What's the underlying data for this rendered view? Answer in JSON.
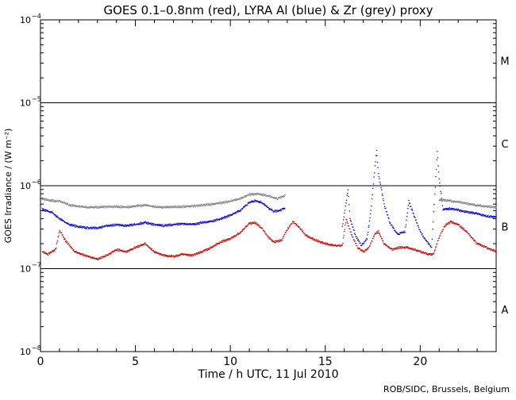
{
  "chart_data": {
    "type": "scatter",
    "title": "GOES 0.1–0.8nm (red), LYRA Al (blue) & Zr (grey) proxy",
    "xlabel": "Time / h UTC, 11 Jul 2010",
    "ylabel": "GOES Irradiance / (W m⁻²)",
    "credit": "ROB/SIDC, Brussels, Belgium",
    "xlim": [
      0,
      24
    ],
    "x_ticks": [
      0,
      5,
      10,
      15,
      20
    ],
    "x_tick_labels": [
      "0",
      "5",
      "10",
      "15",
      "20"
    ],
    "y_scale": "log",
    "ylim": [
      1e-08,
      0.0001
    ],
    "y_ticks": [
      1e-08,
      1e-07,
      1e-06,
      1e-05,
      0.0001
    ],
    "y_tick_bases": [
      "10",
      "10",
      "10",
      "10",
      "10"
    ],
    "y_tick_exps": [
      "−8",
      "−7",
      "−6",
      "−5",
      "−4"
    ],
    "flare_class_lines": [
      1e-07,
      1e-06,
      1e-05
    ],
    "flare_classes": [
      {
        "label": "A",
        "y": 3.2e-08
      },
      {
        "label": "B",
        "y": 3.2e-07
      },
      {
        "label": "C",
        "y": 3.2e-06
      },
      {
        "label": "M",
        "y": 3.2e-05
      }
    ],
    "colors": {
      "goes": "#cc0000",
      "lyra_al": "#0000cc",
      "lyra_zr": "#808080"
    },
    "series": [
      {
        "name": "GOES 0.1–0.8nm",
        "color": "#cc0000",
        "x": [
          0.1,
          0.4,
          0.8,
          1.0,
          1.3,
          1.8,
          2.5,
          3.0,
          3.5,
          4.0,
          4.5,
          5.0,
          5.5,
          6.0,
          6.5,
          7.0,
          7.5,
          8.0,
          8.5,
          9.0,
          9.5,
          10.0,
          10.5,
          11.0,
          11.3,
          11.7,
          12.0,
          12.3,
          12.7,
          13.0,
          13.3,
          13.6,
          14.0,
          14.5,
          15.0,
          15.5,
          15.9,
          16.1,
          16.4,
          16.7,
          17.0,
          17.3,
          17.6,
          17.8,
          18.1,
          18.5,
          18.9,
          19.3,
          19.7,
          20.0,
          20.4,
          20.7,
          21.0,
          21.3,
          21.6,
          22.0,
          22.5,
          23.0,
          23.5,
          24.0
        ],
        "y": [
          1.6e-07,
          1.5e-07,
          1.7e-07,
          2.9e-07,
          2.2e-07,
          1.6e-07,
          1.4e-07,
          1.3e-07,
          1.45e-07,
          1.7e-07,
          1.6e-07,
          1.8e-07,
          2e-07,
          1.6e-07,
          1.45e-07,
          1.4e-07,
          1.5e-07,
          1.45e-07,
          1.6e-07,
          1.8e-07,
          2.1e-07,
          2.3e-07,
          2.7e-07,
          3.5e-07,
          3.6e-07,
          3e-07,
          2.4e-07,
          2.1e-07,
          2.2e-07,
          3e-07,
          3.7e-07,
          3.2e-07,
          2.5e-07,
          2.2e-07,
          2e-07,
          1.9e-07,
          1.9e-07,
          4e-07,
          2.5e-07,
          1.8e-07,
          1.6e-07,
          1.8e-07,
          2.6e-07,
          2.8e-07,
          2e-07,
          1.7e-07,
          1.8e-07,
          1.8e-07,
          1.7e-07,
          1.6e-07,
          1.5e-07,
          1.5e-07,
          2.4e-07,
          3.3e-07,
          3.7e-07,
          3.4e-07,
          2.7e-07,
          2e-07,
          1.8e-07,
          1.6e-07
        ]
      },
      {
        "name": "LYRA Al proxy",
        "color": "#0000cc",
        "x": [
          0.1,
          0.3,
          0.6,
          1.0,
          1.5,
          2.0,
          2.5,
          3.0,
          3.5,
          4.0,
          4.5,
          5.0,
          5.5,
          6.0,
          6.5,
          7.0,
          7.5,
          8.0,
          8.5,
          9.0,
          9.5,
          10.0,
          10.5,
          11.0,
          11.3,
          11.7,
          12.0,
          12.3,
          12.6,
          12.9,
          15.9,
          16.2,
          16.3,
          16.6,
          16.9,
          17.2,
          17.4,
          17.7,
          17.8,
          18.1,
          18.4,
          18.8,
          19.2,
          19.4,
          19.7,
          20.0,
          20.3,
          20.6,
          20.9,
          21.0,
          21.2,
          21.6,
          22.0,
          22.5,
          23.0,
          23.5,
          24.0
        ],
        "y": [
          5.2e-07,
          5e-07,
          4.8e-07,
          4e-07,
          3.4e-07,
          3.2e-07,
          3.1e-07,
          3.1e-07,
          3.3e-07,
          3.4e-07,
          3.3e-07,
          3.4e-07,
          3.6e-07,
          3.4e-07,
          3.3e-07,
          3.4e-07,
          3.5e-07,
          3.4e-07,
          3.6e-07,
          3.7e-07,
          4e-07,
          4.4e-07,
          5e-07,
          6.3e-07,
          6.6e-07,
          6.2e-07,
          5.4e-07,
          4.9e-07,
          5e-07,
          5.4e-07,
          3.2e-07,
          9e-07,
          4e-07,
          2.5e-07,
          1.9e-07,
          2.3e-07,
          5e-07,
          2.7e-06,
          1.4e-06,
          6e-07,
          3.6e-07,
          2.6e-07,
          2.8e-07,
          6.5e-07,
          4.2e-07,
          2.8e-07,
          2.2e-07,
          1.8e-07,
          2.6e-06,
          1.2e-06,
          5.2e-07,
          5.3e-07,
          5.1e-07,
          4.8e-07,
          4.6e-07,
          4.3e-07,
          4.2e-07
        ]
      },
      {
        "name": "LYRA Zr proxy",
        "color": "#808080",
        "x": [
          0.1,
          0.5,
          1.0,
          1.5,
          2.0,
          2.5,
          3.0,
          3.5,
          4.0,
          4.5,
          5.0,
          5.5,
          6.0,
          6.5,
          7.0,
          7.5,
          8.0,
          8.5,
          9.0,
          9.5,
          10.0,
          10.5,
          11.0,
          11.5,
          12.0,
          12.5,
          12.9,
          21.0,
          21.5,
          22.0,
          22.5,
          23.0,
          23.5,
          24.0
        ],
        "y": [
          7e-07,
          6.6e-07,
          6.5e-07,
          5.9e-07,
          5.6e-07,
          5.5e-07,
          5.5e-07,
          5.6e-07,
          5.6e-07,
          5.5e-07,
          5.7e-07,
          5.8e-07,
          5.6e-07,
          5.5e-07,
          5.6e-07,
          5.6e-07,
          5.7e-07,
          5.8e-07,
          6e-07,
          6.2e-07,
          6.5e-07,
          7e-07,
          7.8e-07,
          8e-07,
          7.5e-07,
          7e-07,
          7.7e-07,
          6.8e-07,
          6.6e-07,
          6.4e-07,
          6.1e-07,
          5.8e-07,
          5.6e-07,
          5.5e-07
        ]
      }
    ]
  }
}
